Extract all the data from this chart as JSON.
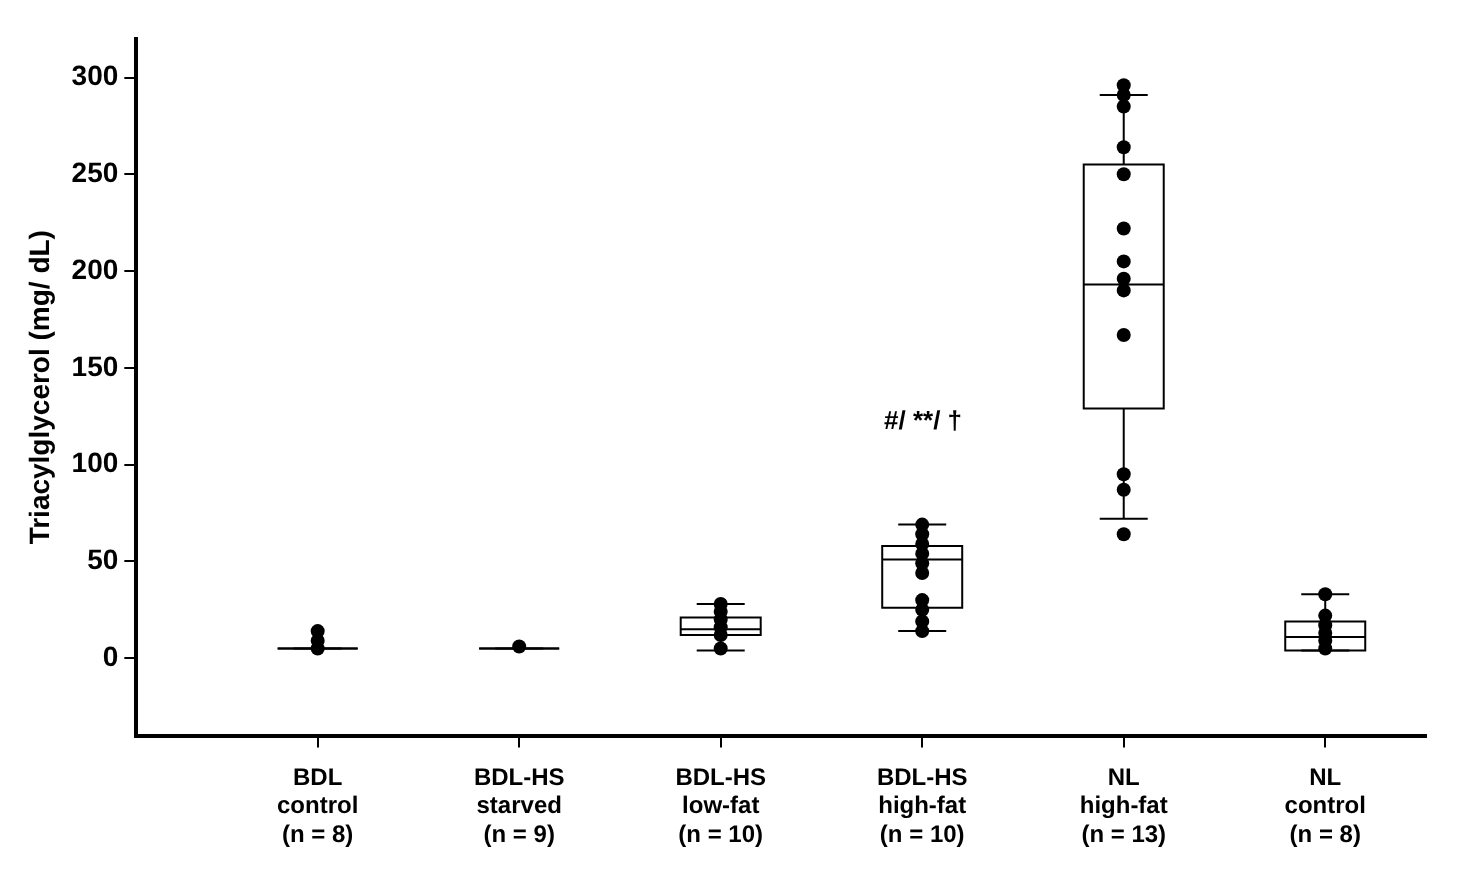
{
  "chart_data": {
    "type": "box",
    "ylabel": "Triacylglycerol (mg/ dL)",
    "categories": [
      "BDL\ncontrol\n(n = 8)",
      "BDL-HS\nstarved\n(n = 9)",
      "BDL-HS\nlow-fat\n(n = 10)",
      "BDL-HS\nhigh-fat\n(n = 10)",
      "NL\nhigh-fat\n(n = 13)",
      "NL\ncontrol\n(n = 8)"
    ],
    "boxes": [
      {
        "low": 5,
        "q1": 5,
        "median": 5,
        "q3": 5,
        "high": 5
      },
      {
        "low": 5,
        "q1": 5,
        "median": 5,
        "q3": 5,
        "high": 5
      },
      {
        "low": 4,
        "q1": 12,
        "median": 15,
        "q3": 21,
        "high": 28
      },
      {
        "low": 14,
        "q1": 26,
        "median": 51,
        "q3": 58,
        "high": 69
      },
      {
        "low": 72,
        "q1": 129,
        "median": 193,
        "q3": 255,
        "high": 291
      },
      {
        "low": 4,
        "q1": 4,
        "median": 11,
        "q3": 19,
        "high": 33
      }
    ],
    "color": "#000000",
    "series": [
      {
        "type": "scatter",
        "color": "#000000",
        "marker": "circle",
        "x": [
          "BDL\ncontrol\n(n = 8)",
          "BDL\ncontrol\n(n = 8)",
          "BDL\ncontrol\n(n = 8)",
          "BDL-HS\nstarved\n(n = 9)",
          "BDL-HS\nlow-fat\n(n = 10)",
          "BDL-HS\nlow-fat\n(n = 10)",
          "BDL-HS\nlow-fat\n(n = 10)",
          "BDL-HS\nlow-fat\n(n = 10)",
          "BDL-HS\nlow-fat\n(n = 10)",
          "BDL-HS\nlow-fat\n(n = 10)",
          "BDL-HS\nhigh-fat\n(n = 10)",
          "BDL-HS\nhigh-fat\n(n = 10)",
          "BDL-HS\nhigh-fat\n(n = 10)",
          "BDL-HS\nhigh-fat\n(n = 10)",
          "BDL-HS\nhigh-fat\n(n = 10)",
          "BDL-HS\nhigh-fat\n(n = 10)",
          "BDL-HS\nhigh-fat\n(n = 10)",
          "BDL-HS\nhigh-fat\n(n = 10)",
          "BDL-HS\nhigh-fat\n(n = 10)",
          "BDL-HS\nhigh-fat\n(n = 10)",
          "NL\nhigh-fat\n(n = 13)",
          "NL\nhigh-fat\n(n = 13)",
          "NL\nhigh-fat\n(n = 13)",
          "NL\nhigh-fat\n(n = 13)",
          "NL\nhigh-fat\n(n = 13)",
          "NL\nhigh-fat\n(n = 13)",
          "NL\nhigh-fat\n(n = 13)",
          "NL\nhigh-fat\n(n = 13)",
          "NL\nhigh-fat\n(n = 13)",
          "NL\nhigh-fat\n(n = 13)",
          "NL\nhigh-fat\n(n = 13)",
          "NL\nhigh-fat\n(n = 13)",
          "NL\nhigh-fat\n(n = 13)",
          "NL\ncontrol\n(n = 8)",
          "NL\ncontrol\n(n = 8)",
          "NL\ncontrol\n(n = 8)",
          "NL\ncontrol\n(n = 8)",
          "NL\ncontrol\n(n = 8)",
          "NL\ncontrol\n(n = 8)"
        ],
        "values": [
          14,
          9,
          5,
          6,
          28,
          24,
          20,
          16,
          12,
          5,
          69,
          64,
          59,
          54,
          49,
          44,
          30,
          25,
          19,
          14,
          296,
          291,
          285,
          264,
          250,
          222,
          205,
          196,
          190,
          167,
          95,
          87,
          64,
          33,
          22,
          17,
          13,
          9,
          5
        ]
      }
    ],
    "annotations": [
      "#/ **/ †"
    ],
    "ylim": [
      -40,
      320
    ],
    "yticks": [
      0,
      50,
      100,
      150,
      200,
      250,
      300
    ],
    "grid": false,
    "legend": false
  }
}
